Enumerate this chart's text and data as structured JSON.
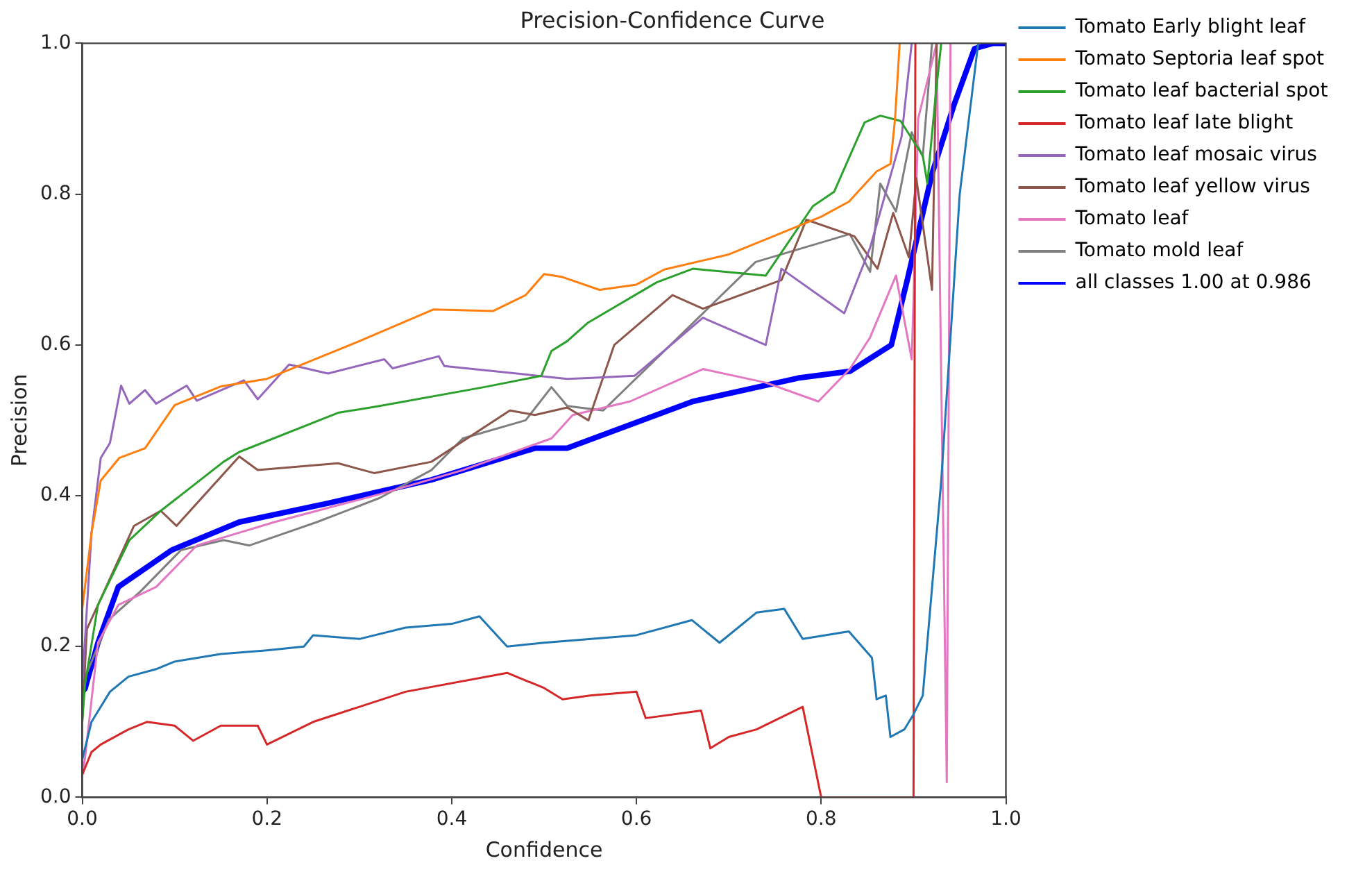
{
  "chart_data": {
    "type": "line",
    "title": "Precision-Confidence Curve",
    "xlabel": "Confidence",
    "ylabel": "Precision",
    "xlim": [
      0,
      1
    ],
    "ylim": [
      0,
      1
    ],
    "xticks": [
      {
        "value": 0,
        "label": "0.0"
      },
      {
        "value": 0.2,
        "label": "0.2"
      },
      {
        "value": 0.4,
        "label": "0.4"
      },
      {
        "value": 0.6,
        "label": "0.6"
      },
      {
        "value": 0.8,
        "label": "0.8"
      },
      {
        "value": 1,
        "label": "1.0"
      }
    ],
    "yticks": [
      {
        "value": 0,
        "label": "0.0"
      },
      {
        "value": 0.2,
        "label": "0.2"
      },
      {
        "value": 0.4,
        "label": "0.4"
      },
      {
        "value": 0.6,
        "label": "0.6"
      },
      {
        "value": 0.8,
        "label": "0.8"
      },
      {
        "value": 1,
        "label": "1.0"
      }
    ],
    "grid": false,
    "legend": "right",
    "marker": "none",
    "line_style": "solid",
    "series": [
      {
        "name": "Tomato Early blight leaf",
        "color": "#1f77b4",
        "x": [
          0,
          0.01,
          0.03,
          0.05,
          0.08,
          0.1,
          0.15,
          0.2,
          0.24,
          0.25,
          0.3,
          0.35,
          0.4,
          0.43,
          0.46,
          0.5,
          0.6,
          0.66,
          0.69,
          0.73,
          0.76,
          0.78,
          0.83,
          0.855,
          0.86,
          0.87,
          0.875,
          0.89,
          0.9,
          0.91,
          0.93,
          0.95,
          0.97
        ],
        "values": [
          0.05,
          0.1,
          0.14,
          0.16,
          0.17,
          0.18,
          0.19,
          0.195,
          0.2,
          0.215,
          0.21,
          0.225,
          0.23,
          0.24,
          0.2,
          0.205,
          0.215,
          0.235,
          0.205,
          0.245,
          0.25,
          0.21,
          0.22,
          0.185,
          0.13,
          0.135,
          0.08,
          0.09,
          0.11,
          0.135,
          0.42,
          0.8,
          1
        ]
      },
      {
        "name": "Tomato Septoria leaf spot",
        "color": "#ff7f0e",
        "x": [
          0,
          0.01,
          0.02,
          0.04,
          0.068,
          0.1,
          0.15,
          0.2,
          0.3,
          0.38,
          0.445,
          0.48,
          0.5,
          0.52,
          0.56,
          0.6,
          0.63,
          0.7,
          0.75,
          0.8,
          0.83,
          0.86,
          0.875,
          0.88,
          0.885
        ],
        "values": [
          0.25,
          0.35,
          0.42,
          0.45,
          0.463,
          0.52,
          0.545,
          0.555,
          0.605,
          0.647,
          0.645,
          0.666,
          0.694,
          0.69,
          0.673,
          0.68,
          0.7,
          0.72,
          0.745,
          0.77,
          0.79,
          0.83,
          0.84,
          0.9,
          1
        ]
      },
      {
        "name": "Tomato leaf bacterial spot",
        "color": "#2ca02c",
        "x": [
          0,
          0.003,
          0.017,
          0.051,
          0.085,
          0.153,
          0.17,
          0.277,
          0.322,
          0.435,
          0.497,
          0.508,
          0.525,
          0.547,
          0.622,
          0.661,
          0.74,
          0.791,
          0.814,
          0.847,
          0.864,
          0.886,
          0.91,
          0.915,
          0.924,
          0.93
        ],
        "values": [
          0.1,
          0.15,
          0.255,
          0.341,
          0.38,
          0.445,
          0.458,
          0.51,
          0.519,
          0.544,
          0.559,
          0.592,
          0.605,
          0.629,
          0.683,
          0.701,
          0.692,
          0.784,
          0.803,
          0.895,
          0.904,
          0.897,
          0.851,
          0.814,
          0.932,
          1
        ]
      },
      {
        "name": "Tomato leaf late blight",
        "color": "#d62728",
        "x": [
          0,
          0.01,
          0.02,
          0.05,
          0.07,
          0.1,
          0.12,
          0.15,
          0.19,
          0.2,
          0.25,
          0.3,
          0.35,
          0.46,
          0.5,
          0.52,
          0.55,
          0.6,
          0.61,
          0.67,
          0.68,
          0.7,
          0.73,
          0.78,
          0.8,
          0.9,
          0.902
        ],
        "values": [
          0.03,
          0.06,
          0.07,
          0.09,
          0.1,
          0.095,
          0.075,
          0.095,
          0.095,
          0.07,
          0.1,
          0.12,
          0.14,
          0.165,
          0.145,
          0.13,
          0.135,
          0.14,
          0.105,
          0.115,
          0.065,
          0.08,
          0.09,
          0.12,
          0,
          0,
          1
        ]
      },
      {
        "name": "Tomato leaf mosaic virus",
        "color": "#9467bd",
        "x": [
          0,
          0.01,
          0.02,
          0.03,
          0.042,
          0.051,
          0.068,
          0.08,
          0.113,
          0.124,
          0.175,
          0.19,
          0.224,
          0.266,
          0.327,
          0.336,
          0.386,
          0.392,
          0.525,
          0.548,
          0.598,
          0.672,
          0.74,
          0.757,
          0.825,
          0.853,
          0.887,
          0.898
        ],
        "values": [
          0.15,
          0.35,
          0.45,
          0.47,
          0.546,
          0.522,
          0.54,
          0.522,
          0.546,
          0.526,
          0.553,
          0.528,
          0.574,
          0.562,
          0.581,
          0.569,
          0.585,
          0.572,
          0.555,
          0.556,
          0.559,
          0.636,
          0.6,
          0.701,
          0.642,
          0.729,
          0.876,
          1
        ]
      },
      {
        "name": "Tomato leaf yellow virus",
        "color": "#8c564b",
        "x": [
          0,
          0.005,
          0.017,
          0.056,
          0.085,
          0.102,
          0.17,
          0.19,
          0.277,
          0.316,
          0.378,
          0.463,
          0.49,
          0.525,
          0.548,
          0.576,
          0.639,
          0.672,
          0.757,
          0.784,
          0.836,
          0.861,
          0.878,
          0.895,
          0.903,
          0.92,
          0.925
        ],
        "values": [
          0.1,
          0.223,
          0.255,
          0.36,
          0.38,
          0.36,
          0.452,
          0.434,
          0.443,
          0.43,
          0.445,
          0.513,
          0.507,
          0.517,
          0.5,
          0.6,
          0.666,
          0.648,
          0.686,
          0.766,
          0.744,
          0.701,
          0.775,
          0.716,
          0.821,
          0.673,
          1
        ]
      },
      {
        "name": "Tomato leaf",
        "color": "#e377c2",
        "x": [
          0,
          0.003,
          0.017,
          0.039,
          0.08,
          0.124,
          0.208,
          0.322,
          0.412,
          0.508,
          0.531,
          0.593,
          0.672,
          0.74,
          0.797,
          0.831,
          0.853,
          0.881,
          0.898,
          0.9,
          0.905,
          0.925,
          0.936,
          0.94
        ],
        "values": [
          0.03,
          0.052,
          0.205,
          0.255,
          0.279,
          0.334,
          0.365,
          0.402,
          0.434,
          0.476,
          0.507,
          0.525,
          0.568,
          0.55,
          0.525,
          0.568,
          0.61,
          0.692,
          0.581,
          0.66,
          0.9,
          1,
          0.02,
          1
        ]
      },
      {
        "name": "Tomato mold leaf",
        "color": "#7f7f7f",
        "x": [
          0,
          0.029,
          0.063,
          0.107,
          0.153,
          0.181,
          0.254,
          0.322,
          0.378,
          0.412,
          0.48,
          0.508,
          0.525,
          0.564,
          0.729,
          0.831,
          0.853,
          0.864,
          0.881,
          0.898,
          0.91,
          0.92
        ],
        "values": [
          0.15,
          0.236,
          0.273,
          0.328,
          0.341,
          0.334,
          0.365,
          0.397,
          0.434,
          0.476,
          0.5,
          0.544,
          0.519,
          0.513,
          0.71,
          0.747,
          0.697,
          0.814,
          0.777,
          0.882,
          0.85,
          1
        ]
      },
      {
        "name": "all classes 1.00 at 0.986",
        "color": "#0000ff",
        "x": [
          0,
          0.003,
          0.017,
          0.039,
          0.097,
          0.17,
          0.266,
          0.378,
          0.49,
          0.525,
          0.661,
          0.775,
          0.831,
          0.876,
          0.893,
          0.92,
          0.944,
          0.966,
          0.986,
          1
        ],
        "values": [
          0.14,
          0.144,
          0.205,
          0.279,
          0.328,
          0.365,
          0.39,
          0.421,
          0.463,
          0.463,
          0.525,
          0.556,
          0.565,
          0.6,
          0.685,
          0.827,
          0.919,
          0.993,
          1,
          1
        ]
      }
    ]
  }
}
